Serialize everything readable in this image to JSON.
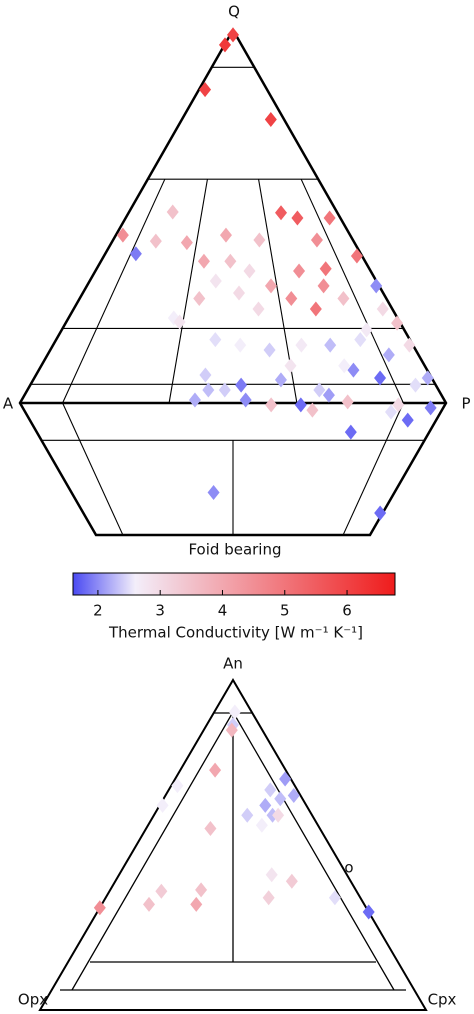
{
  "chart_data": [
    {
      "type": "ternary",
      "apex_labels": [
        "Q",
        "A",
        "P"
      ],
      "bottom_label": "Foid bearing",
      "x": [
        50,
        3,
        9,
        87,
        3,
        18,
        12,
        21,
        31,
        73,
        80,
        95,
        85,
        47,
        61,
        39,
        49,
        56,
        44,
        63,
        74,
        84,
        98,
        52,
        69,
        76,
        86,
        99,
        81,
        58,
        39,
        32,
        97,
        99,
        45,
        52,
        60,
        69,
        77,
        86,
        92,
        99,
        43,
        52,
        62,
        71,
        81,
        87,
        95,
        99,
        44,
        53,
        66,
        77,
        89,
        97,
        88,
        80,
        93,
        69,
        59,
        44,
        99,
        34,
        41,
        48,
        73,
        89,
        79,
        65
      ],
      "y": [
        98.7,
        96,
        84,
        76,
        45,
        43.4,
        40,
        51.2,
        43,
        51,
        49.6,
        49.6,
        43.7,
        45,
        43.7,
        38,
        38,
        35.4,
        32.7,
        31.4,
        35.4,
        36,
        39.4,
        29.5,
        28,
        25.2,
        28,
        31.4,
        31.4,
        25.2,
        28,
        22.8,
        25.2,
        21.4,
        17,
        15.5,
        14.2,
        15.5,
        15.5,
        17,
        12.9,
        15.5,
        7.5,
        4.8,
        6.2,
        3.5,
        8.8,
        6.7,
        4.8,
        6.7,
        3.5,
        0.8,
        -0.5,
        0.3,
        -0.5,
        -1.3,
        -2.4,
        -7.8,
        -4.6,
        -1.9,
        -0.5,
        -24,
        -29.5,
        21.7,
        0.8,
        3.5,
        2.1,
        19.6,
        10,
        10
      ],
      "values": [
        6,
        6.2,
        6,
        6,
        4.5,
        3.5,
        1.9,
        3.5,
        4,
        5.5,
        5.5,
        5,
        4.5,
        4,
        3.5,
        4,
        3.5,
        3,
        2.8,
        4,
        4.5,
        5,
        5,
        3,
        4.5,
        5,
        3.5,
        2,
        4.5,
        3,
        3.5,
        2.6,
        3,
        3.5,
        2.5,
        2.6,
        2.4,
        2.7,
        2.3,
        2.5,
        2.2,
        3,
        2.4,
        1.9,
        2.2,
        2.4,
        2,
        1.8,
        2.5,
        2.2,
        2.3,
        2,
        1.8,
        3.5,
        3,
        1.9,
        2.5,
        1.8,
        1.8,
        3.5,
        3.5,
        2,
        1.8,
        2.8,
        2.2,
        2.4,
        2.1,
        2.7,
        2.6,
        2.8
      ],
      "colorbar_label": "Thermal Conductivity [W m⁻¹ K⁻¹]",
      "clim": [
        1.6,
        6.77
      ],
      "cticks": [
        2,
        3,
        4,
        5,
        6
      ],
      "colormap": [
        {
          "value": 1.6,
          "color": "#4a4af2"
        },
        {
          "value": 2.6,
          "color": "#f3eefa"
        },
        {
          "value": 6.77,
          "color": "#ef1c1c"
        }
      ]
    },
    {
      "type": "ternary",
      "apex_labels": [
        "An",
        "Opx",
        "Cpx"
      ],
      "annotation": "o",
      "x": [
        55,
        50,
        48,
        33,
        5,
        2,
        37,
        59,
        79,
        84,
        95,
        75,
        67,
        78.5,
        95,
        72,
        0,
        18,
        21,
        37,
        36,
        67,
        75,
        64,
        90,
        100
      ],
      "y": [
        90.3,
        86.4,
        84.8,
        72.7,
        68,
        62,
        55,
        59,
        66.7,
        64,
        65,
        59,
        56,
        59,
        70,
        62,
        31,
        32,
        36,
        36.4,
        32,
        41,
        39,
        34,
        34,
        29.7
      ],
      "values": [
        2.6,
        2.4,
        3.7,
        4,
        2.6,
        2.6,
        3.5,
        2.4,
        2.4,
        2.3,
        2.2,
        2.3,
        2.6,
        3,
        2.1,
        2.2,
        4.5,
        3.5,
        3.3,
        3.5,
        4,
        2.8,
        3.3,
        3.2,
        2.5,
        1.8
      ]
    }
  ]
}
